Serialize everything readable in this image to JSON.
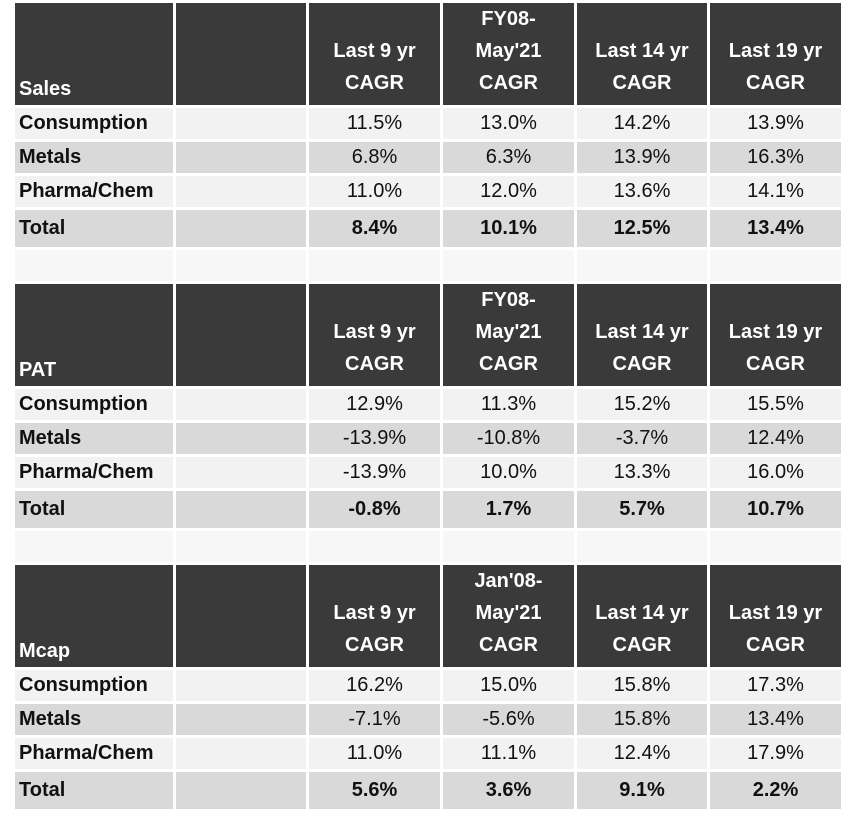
{
  "sections": [
    {
      "title": "Sales",
      "headers": [
        [
          "Last 9 yr",
          "CAGR"
        ],
        [
          "FY08-",
          "May'21",
          "CAGR"
        ],
        [
          "Last 14 yr",
          "CAGR"
        ],
        [
          "Last 19 yr",
          "CAGR"
        ]
      ],
      "rows": [
        {
          "label": "Consumption",
          "values": [
            "11.5%",
            "13.0%",
            "14.2%",
            "13.9%"
          ]
        },
        {
          "label": "Metals",
          "values": [
            "6.8%",
            "6.3%",
            "13.9%",
            "16.3%"
          ]
        },
        {
          "label": "Pharma/Chem",
          "values": [
            "11.0%",
            "12.0%",
            "13.6%",
            "14.1%"
          ]
        }
      ],
      "total": {
        "label": "Total",
        "values": [
          "8.4%",
          "10.1%",
          "12.5%",
          "13.4%"
        ]
      }
    },
    {
      "title": "PAT",
      "headers": [
        [
          "Last 9 yr",
          "CAGR"
        ],
        [
          "FY08-",
          "May'21",
          "CAGR"
        ],
        [
          "Last 14 yr",
          "CAGR"
        ],
        [
          "Last 19 yr",
          "CAGR"
        ]
      ],
      "rows": [
        {
          "label": "Consumption",
          "values": [
            "12.9%",
            "11.3%",
            "15.2%",
            "15.5%"
          ]
        },
        {
          "label": "Metals",
          "values": [
            "-13.9%",
            "-10.8%",
            "-3.7%",
            "12.4%"
          ]
        },
        {
          "label": "Pharma/Chem",
          "values": [
            "-13.9%",
            "10.0%",
            "13.3%",
            "16.0%"
          ]
        }
      ],
      "total": {
        "label": "Total",
        "values": [
          "-0.8%",
          "1.7%",
          "5.7%",
          "10.7%"
        ]
      }
    },
    {
      "title": "Mcap",
      "headers": [
        [
          "Last 9 yr",
          "CAGR"
        ],
        [
          "Jan'08-",
          "May'21",
          "CAGR"
        ],
        [
          "Last 14 yr",
          "CAGR"
        ],
        [
          "Last 19 yr",
          "CAGR"
        ]
      ],
      "rows": [
        {
          "label": "Consumption",
          "values": [
            "16.2%",
            "15.0%",
            "15.8%",
            "17.3%"
          ]
        },
        {
          "label": "Metals",
          "values": [
            "-7.1%",
            "-5.6%",
            "15.8%",
            "13.4%"
          ]
        },
        {
          "label": "Pharma/Chem",
          "values": [
            "11.0%",
            "11.1%",
            "12.4%",
            "17.9%"
          ]
        }
      ],
      "total": {
        "label": "Total",
        "values": [
          "5.6%",
          "3.6%",
          "9.1%",
          "2.2%"
        ]
      }
    }
  ]
}
